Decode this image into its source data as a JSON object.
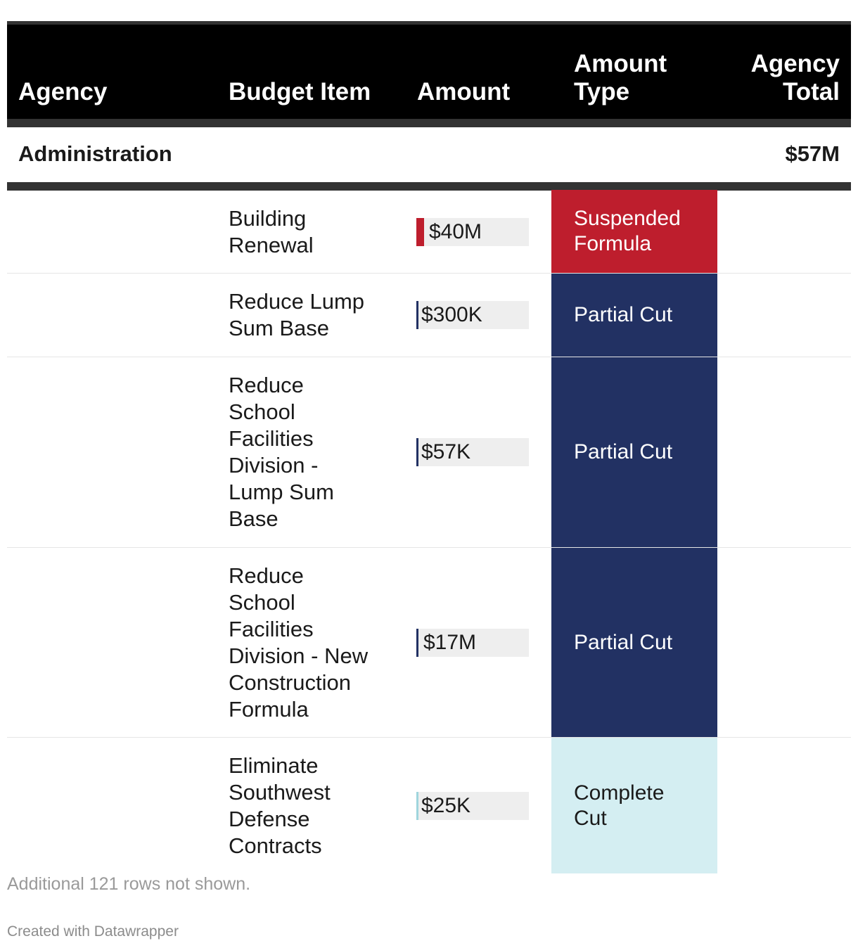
{
  "chart_data": {
    "type": "table",
    "columns": [
      "Agency",
      "Budget Item",
      "Amount",
      "Amount Type",
      "Agency Total"
    ],
    "group": {
      "agency": "Administration",
      "agency_total": "$57M"
    },
    "rows": [
      {
        "item": "Building Renewal",
        "amount": "$40M",
        "amount_value": 40000000,
        "amount_type": "Suspended Formula",
        "type_color": "#be1e2d",
        "text_color": "#ffffff",
        "bar_color": "#be1e2d"
      },
      {
        "item": "Reduce Lump Sum Base",
        "amount": "$300K",
        "amount_value": 300000,
        "amount_type": "Partial Cut",
        "type_color": "#223163",
        "text_color": "#ffffff",
        "bar_color": "#223163"
      },
      {
        "item": "Reduce School Facilities Division - Lump Sum Base",
        "amount": "$57K",
        "amount_value": 57000,
        "amount_type": "Partial Cut",
        "type_color": "#223163",
        "text_color": "#ffffff",
        "bar_color": "#223163"
      },
      {
        "item": "Reduce School Facilities Division - New Construction Formula",
        "amount": "$17M",
        "amount_value": 17000000,
        "amount_type": "Partial Cut",
        "type_color": "#223163",
        "text_color": "#ffffff",
        "bar_color": "#223163"
      },
      {
        "item": "Eliminate Southwest Defense Contracts",
        "amount": "$25K",
        "amount_value": 25000,
        "amount_type": "Complete Cut",
        "type_color": "#d4eef2",
        "text_color": "#1a1a1a",
        "bar_color": "#9fd5dd"
      }
    ],
    "amount_max": 1000000000
  },
  "footer": {
    "note": "Additional 121 rows not shown.",
    "credit": "Created with Datawrapper"
  }
}
